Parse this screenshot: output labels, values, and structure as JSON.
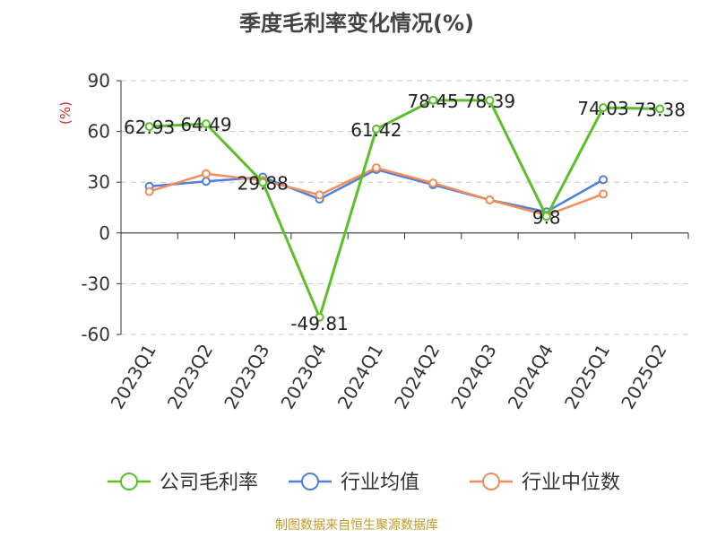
{
  "chart_data": {
    "type": "line",
    "title": "季度毛利率变化情况(%)",
    "ylabel": "(%)",
    "xlabel": "",
    "ylim": [
      -60,
      90
    ],
    "yticks": [
      -60,
      -30,
      0,
      30,
      60,
      90
    ],
    "grid": true,
    "legend_position": "bottom",
    "categories": [
      "2023Q1",
      "2023Q2",
      "2023Q3",
      "2023Q4",
      "2024Q1",
      "2024Q2",
      "2024Q3",
      "2024Q4",
      "2025Q1",
      "2025Q2"
    ],
    "series": [
      {
        "name": "公司毛利率",
        "color": "#5cbf2a",
        "values": [
          62.93,
          64.49,
          29.88,
          -49.81,
          61.42,
          78.45,
          78.39,
          9.8,
          74.03,
          73.38
        ],
        "labels": [
          "62.93",
          "64.49",
          "29.88",
          "-49.81",
          "61.42",
          "78.45",
          "78.39",
          "9.8",
          "74.03",
          "73.38"
        ]
      },
      {
        "name": "行业均值",
        "color": "#4f7fd9",
        "values": [
          27.5,
          30.5,
          33,
          20,
          37.5,
          28.5,
          19.5,
          12.5,
          31.5,
          null
        ]
      },
      {
        "name": "行业中位数",
        "color": "#f28c5a",
        "values": [
          24.5,
          35,
          31,
          22.5,
          38.5,
          29.5,
          19.5,
          10.5,
          23,
          null
        ]
      }
    ]
  },
  "footer": {
    "source": "制图数据来自恒生聚源数据库"
  }
}
